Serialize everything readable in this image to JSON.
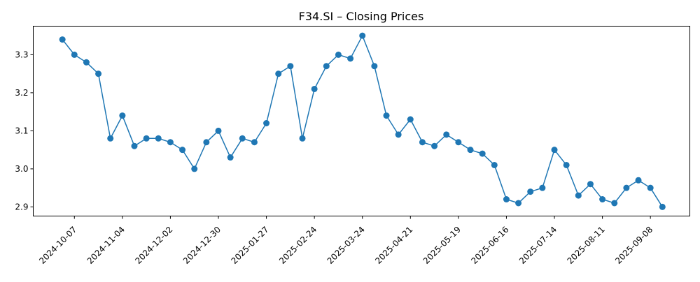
{
  "chart_data": {
    "type": "line",
    "title": "F34.SI – Closing Prices",
    "xlabel": "",
    "ylabel": "",
    "markers": true,
    "grid": false,
    "legend": "none",
    "color": "#1f77b4",
    "xlim": [
      "2024-09-13",
      "2025-10-01"
    ],
    "ylim": [
      2.876,
      3.375
    ],
    "x_ticks": [
      "2024-10-07",
      "2024-11-04",
      "2024-12-02",
      "2024-12-30",
      "2025-01-27",
      "2025-02-24",
      "2025-03-24",
      "2025-04-21",
      "2025-05-19",
      "2025-06-16",
      "2025-07-14",
      "2025-08-11",
      "2025-09-08"
    ],
    "y_ticks": [
      "2.9",
      "3.0",
      "3.1",
      "3.2",
      "3.3"
    ],
    "x": [
      "2024-09-30",
      "2024-10-07",
      "2024-10-14",
      "2024-10-21",
      "2024-10-28",
      "2024-11-04",
      "2024-11-11",
      "2024-11-18",
      "2024-11-25",
      "2024-12-02",
      "2024-12-09",
      "2024-12-16",
      "2024-12-23",
      "2024-12-30",
      "2025-01-06",
      "2025-01-13",
      "2025-01-20",
      "2025-01-27",
      "2025-02-03",
      "2025-02-10",
      "2025-02-17",
      "2025-02-24",
      "2025-03-03",
      "2025-03-10",
      "2025-03-17",
      "2025-03-24",
      "2025-03-31",
      "2025-04-07",
      "2025-04-14",
      "2025-04-21",
      "2025-04-28",
      "2025-05-05",
      "2025-05-12",
      "2025-05-19",
      "2025-05-26",
      "2025-06-02",
      "2025-06-09",
      "2025-06-16",
      "2025-06-23",
      "2025-06-30",
      "2025-07-07",
      "2025-07-14",
      "2025-07-21",
      "2025-07-28",
      "2025-08-04",
      "2025-08-11",
      "2025-08-18",
      "2025-08-25",
      "2025-09-01",
      "2025-09-08",
      "2025-09-15"
    ],
    "values": [
      3.34,
      3.3,
      3.28,
      3.25,
      3.08,
      3.14,
      3.06,
      3.08,
      3.08,
      3.07,
      3.05,
      3.0,
      3.07,
      3.1,
      3.03,
      3.08,
      3.07,
      3.12,
      3.25,
      3.27,
      3.08,
      3.21,
      3.27,
      3.3,
      3.29,
      3.35,
      3.27,
      3.14,
      3.09,
      3.13,
      3.07,
      3.06,
      3.09,
      3.07,
      3.05,
      3.04,
      3.01,
      2.92,
      2.91,
      2.94,
      2.95,
      3.05,
      3.01,
      2.93,
      2.96,
      2.92,
      2.91,
      2.95,
      2.97,
      2.95,
      2.9
    ]
  }
}
